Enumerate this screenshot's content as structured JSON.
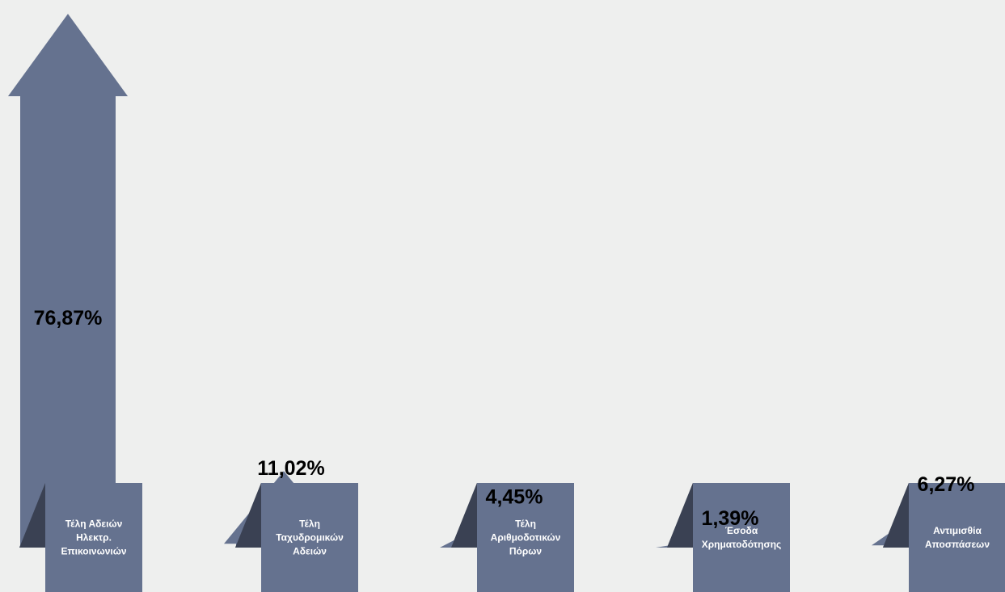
{
  "chart_data": {
    "type": "bar",
    "categories": [
      "Τέλη Αδειών Ηλεκτρ. Επικοινωνιών",
      "Τέλη Ταχυδρομικών Αδειών",
      "Τέλη Αριθμοδοτικών Πόρων",
      "Έσοδα Χρηματοδότησης",
      "Αντιμισθία Αποσπάσεων"
    ],
    "category_lines": [
      [
        "Τέλη Αδειών",
        "Ηλεκτρ.",
        "Επικοινωνιών"
      ],
      [
        "Τέλη",
        "Ταχυδρομικών",
        "Αδειών"
      ],
      [
        "Τέλη",
        "Αριθμοδοτικών",
        "Πόρων"
      ],
      [
        "Έσοδα",
        "Χρηματοδότησης"
      ],
      [
        "Αντιμισθία",
        "Αποσπάσεων"
      ]
    ],
    "values": [
      76.87,
      11.02,
      4.45,
      1.39,
      6.27
    ],
    "value_labels": [
      "76,87%",
      "11,02%",
      "4,45%",
      "1,39%",
      "6,27%"
    ],
    "ylim": [
      0,
      100
    ],
    "grid": false,
    "legend": "none",
    "colors": {
      "arrow": "#65728f",
      "arrow_shadow": "#3a4153",
      "label_box": "#65728f",
      "label_text": "#ffffff",
      "value_text": "#000000",
      "background": "#eeefee"
    }
  }
}
